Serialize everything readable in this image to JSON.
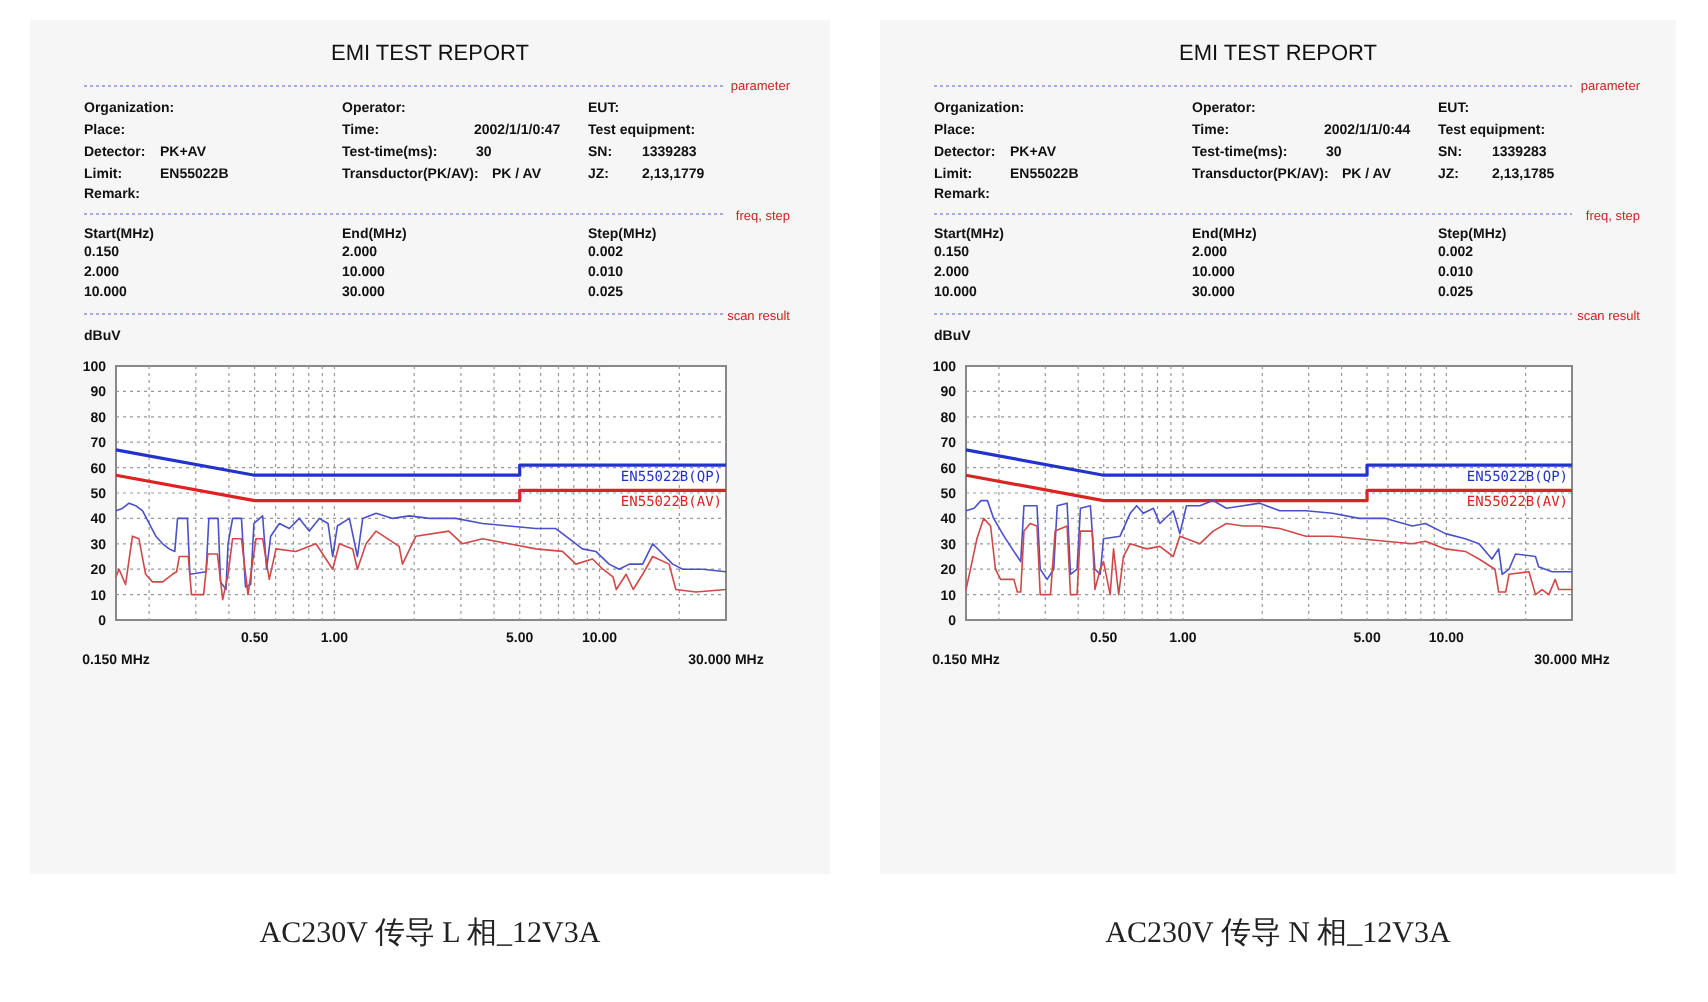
{
  "chart_data": [
    {
      "type": "line",
      "title": "EMI TEST REPORT",
      "ylabel": "dBuV",
      "log": "x",
      "xlim": [
        0.15,
        30
      ],
      "ylim": [
        0,
        100
      ],
      "grid": true,
      "xticks": [
        {
          "value": 0.15,
          "label": null
        },
        {
          "value": 0.2,
          "label": null
        },
        {
          "value": 0.3,
          "label": null
        },
        {
          "value": 0.4,
          "label": null
        },
        {
          "value": 0.5,
          "label": "0.50"
        },
        {
          "value": 0.6,
          "label": null
        },
        {
          "value": 0.7,
          "label": null
        },
        {
          "value": 0.8,
          "label": null
        },
        {
          "value": 0.9,
          "label": null
        },
        {
          "value": 1,
          "label": "1.00"
        },
        {
          "value": 2,
          "label": null
        },
        {
          "value": 3,
          "label": null
        },
        {
          "value": 4,
          "label": null
        },
        {
          "value": 5,
          "label": "5.00"
        },
        {
          "value": 6,
          "label": null
        },
        {
          "value": 7,
          "label": null
        },
        {
          "value": 8,
          "label": null
        },
        {
          "value": 9,
          "label": null
        },
        {
          "value": 10,
          "label": "10.00"
        },
        {
          "value": 20,
          "label": null
        },
        {
          "value": 30,
          "label": null
        }
      ],
      "yticks": [
        0,
        10,
        20,
        30,
        40,
        50,
        60,
        70,
        80,
        90,
        100
      ],
      "series": [
        {
          "name": "EN55022B(QP)",
          "color": "#2233cc",
          "x": [
            0.15,
            0.5,
            5,
            5,
            30
          ],
          "values": [
            67,
            57,
            57,
            61,
            61
          ]
        },
        {
          "name": "EN55022B(AV)",
          "color": "#dd2222",
          "x": [
            0.15,
            0.5,
            5,
            5,
            30
          ],
          "values": [
            57,
            47,
            47,
            51,
            51
          ]
        },
        {
          "color": "#4a50c8",
          "x": [
            0.15,
            0.159,
            0.168,
            0.178,
            0.189,
            0.2,
            0.212,
            0.225,
            0.238,
            0.25,
            0.256,
            0.279,
            0.285,
            0.328,
            0.336,
            0.364,
            0.372,
            0.39,
            0.397,
            0.413,
            0.446,
            0.462,
            0.483,
            0.497,
            0.536,
            0.555,
            0.575,
            0.62,
            0.676,
            0.737,
            0.804,
            0.877,
            0.946,
            0.985,
            1.026,
            1.139,
            1.221,
            1.279,
            1.436,
            1.659,
            1.917,
            2.28,
            2.87,
            3.62,
            4.56,
            5.75,
            6.84,
            7.46,
            8.62,
            9.68,
            10.87,
            11.86,
            12.95,
            14.54,
            15.87,
            17.31,
            18.88,
            20.6,
            24.5,
            30
          ],
          "values": [
            43,
            44,
            46,
            45,
            43,
            38,
            33,
            30,
            28,
            27,
            40,
            40,
            18,
            19,
            40,
            40,
            15,
            12,
            30,
            40,
            40,
            13,
            14,
            38,
            41,
            20,
            33,
            38,
            36,
            40,
            35,
            40,
            38,
            25,
            37,
            40,
            25,
            40,
            42,
            40,
            41,
            40,
            40,
            38,
            37,
            36,
            36,
            33,
            28,
            27,
            22,
            20,
            22,
            22,
            30,
            26,
            22,
            20,
            20,
            19
          ]
        },
        {
          "color": "#d04848",
          "x": [
            0.15,
            0.154,
            0.163,
            0.173,
            0.183,
            0.194,
            0.206,
            0.225,
            0.245,
            0.254,
            0.26,
            0.281,
            0.289,
            0.321,
            0.333,
            0.362,
            0.379,
            0.397,
            0.413,
            0.446,
            0.472,
            0.506,
            0.536,
            0.568,
            0.602,
            0.715,
            0.852,
            0.985,
            1.044,
            1.172,
            1.221,
            1.316,
            1.436,
            1.755,
            1.806,
            2.03,
            2.7,
            3.04,
            3.62,
            4.56,
            5.75,
            7.25,
            8.15,
            9.41,
            10.3,
            11.24,
            11.57,
            12.6,
            13.4,
            14.54,
            15.87,
            18.3,
            19.4,
            23.1,
            30
          ],
          "values": [
            17,
            20,
            14,
            33,
            32,
            18,
            15,
            15,
            18,
            19,
            25,
            25,
            10,
            10,
            26,
            26,
            8,
            18,
            32,
            32,
            10,
            32,
            32,
            16,
            28,
            27,
            30,
            20,
            30,
            28,
            20,
            30,
            35,
            29,
            22,
            33,
            35,
            30,
            32,
            30,
            28,
            27,
            22,
            24,
            20,
            17,
            12,
            18,
            12,
            18,
            25,
            22,
            12,
            11,
            12
          ]
        }
      ],
      "annotations": [
        "parameter",
        "Organization:",
        "Operator:",
        "EUT:",
        "Place:",
        "Time:",
        "2002/1/1/0:47",
        "Test equipment:",
        "Detector:",
        "PK+AV",
        "Test-time(ms):",
        "30",
        "SN:",
        "1339283",
        "Limit:",
        "EN55022B",
        "Transductor(PK/AV):",
        "PK  /  AV",
        "JZ:",
        "2,13,1779",
        "Remark:",
        "freq, step",
        "Start(MHz)",
        "End(MHz)",
        "Step(MHz)",
        "0.150",
        "2.000",
        "0.002",
        "2.000",
        "10.000",
        "0.010",
        "10.000",
        "30.000",
        "0.025",
        "scan result",
        "AC230V 传导 L 相_12V3A",
        "0.150 MHz",
        "30.000 MHz"
      ]
    },
    {
      "type": "line",
      "title": "EMI TEST REPORT",
      "ylabel": "dBuV",
      "log": "x",
      "xlim": [
        0.15,
        30
      ],
      "ylim": [
        0,
        100
      ],
      "grid": true,
      "xticks": [
        {
          "value": 0.15,
          "label": null
        },
        {
          "value": 0.2,
          "label": null
        },
        {
          "value": 0.3,
          "label": null
        },
        {
          "value": 0.4,
          "label": null
        },
        {
          "value": 0.5,
          "label": "0.50"
        },
        {
          "value": 0.6,
          "label": null
        },
        {
          "value": 0.7,
          "label": null
        },
        {
          "value": 0.8,
          "label": null
        },
        {
          "value": 0.9,
          "label": null
        },
        {
          "value": 1,
          "label": "1.00"
        },
        {
          "value": 2,
          "label": null
        },
        {
          "value": 3,
          "label": null
        },
        {
          "value": 4,
          "label": null
        },
        {
          "value": 5,
          "label": "5.00"
        },
        {
          "value": 6,
          "label": null
        },
        {
          "value": 7,
          "label": null
        },
        {
          "value": 8,
          "label": null
        },
        {
          "value": 9,
          "label": null
        },
        {
          "value": 10,
          "label": "10.00"
        },
        {
          "value": 20,
          "label": null
        },
        {
          "value": 30,
          "label": null
        }
      ],
      "yticks": [
        0,
        10,
        20,
        30,
        40,
        50,
        60,
        70,
        80,
        90,
        100
      ],
      "series": [
        {
          "name": "EN55022B(QP)",
          "color": "#2233cc",
          "x": [
            0.15,
            0.5,
            5,
            5,
            30
          ],
          "values": [
            67,
            57,
            57,
            61,
            61
          ]
        },
        {
          "name": "EN55022B(AV)",
          "color": "#dd2222",
          "x": [
            0.15,
            0.5,
            5,
            5,
            30
          ],
          "values": [
            57,
            47,
            47,
            51,
            51
          ]
        },
        {
          "color": "#4a50c8",
          "x": [
            0.15,
            0.161,
            0.171,
            0.181,
            0.191,
            0.209,
            0.228,
            0.242,
            0.249,
            0.279,
            0.287,
            0.305,
            0.323,
            0.333,
            0.363,
            0.374,
            0.396,
            0.408,
            0.445,
            0.463,
            0.485,
            0.499,
            0.577,
            0.63,
            0.667,
            0.707,
            0.772,
            0.817,
            0.918,
            0.973,
            1.031,
            1.158,
            1.302,
            1.462,
            1.69,
            1.955,
            2.33,
            2.93,
            3.7,
            4.66,
            5.89,
            7.42,
            8.33,
            9.92,
            11.8,
            13.3,
            14.9,
            15.8,
            16.3,
            17.3,
            18.3,
            21.8,
            22.4,
            25.2,
            30
          ],
          "values": [
            43,
            44,
            47,
            47,
            40,
            33,
            27,
            23,
            45,
            45,
            20,
            16,
            20,
            45,
            46,
            18,
            20,
            44,
            45,
            20,
            18,
            32,
            33,
            42,
            45,
            42,
            44,
            38,
            43,
            34,
            45,
            45,
            47,
            44,
            45,
            46,
            43,
            43,
            42,
            40,
            40,
            37,
            38,
            34,
            32,
            30,
            24,
            28,
            18,
            20,
            26,
            25,
            21,
            19,
            19
          ]
        },
        {
          "color": "#d04848",
          "x": [
            0.15,
            0.156,
            0.165,
            0.175,
            0.186,
            0.194,
            0.203,
            0.228,
            0.235,
            0.242,
            0.249,
            0.263,
            0.279,
            0.287,
            0.314,
            0.327,
            0.363,
            0.374,
            0.396,
            0.408,
            0.452,
            0.463,
            0.485,
            0.499,
            0.529,
            0.545,
            0.57,
            0.594,
            0.63,
            0.729,
            0.817,
            0.918,
            0.973,
            1.158,
            1.302,
            1.462,
            1.69,
            1.955,
            2.33,
            2.93,
            3.7,
            4.66,
            5.89,
            7.42,
            8.33,
            9.92,
            11.8,
            13.3,
            15.3,
            15.8,
            16.8,
            17.3,
            20.6,
            21.8,
            23.1,
            24.5,
            25.9,
            26.7,
            30
          ],
          "values": [
            12,
            20,
            32,
            40,
            37,
            20,
            16,
            16,
            11,
            11,
            35,
            38,
            37,
            10,
            10,
            35,
            37,
            10,
            10,
            35,
            35,
            12,
            20,
            23,
            10,
            28,
            10,
            25,
            30,
            28,
            29,
            25,
            33,
            30,
            35,
            38,
            37,
            37,
            36,
            33,
            33,
            32,
            31,
            30,
            31,
            28,
            27,
            24,
            20,
            11,
            11,
            18,
            19,
            10,
            12,
            10,
            16,
            12,
            12
          ]
        }
      ],
      "annotations": [
        "parameter",
        "Organization:",
        "Operator:",
        "EUT:",
        "Place:",
        "Time:",
        "2002/1/1/0:44",
        "Test equipment:",
        "Detector:",
        "PK+AV",
        "Test-time(ms):",
        "30",
        "SN:",
        "1339283",
        "Limit:",
        "EN55022B",
        "Transductor(PK/AV):",
        "PK  /  AV",
        "JZ:",
        "2,13,1785",
        "Remark:",
        "freq, step",
        "Start(MHz)",
        "End(MHz)",
        "Step(MHz)",
        "0.150",
        "2.000",
        "0.002",
        "2.000",
        "10.000",
        "0.010",
        "10.000",
        "30.000",
        "0.025",
        "scan result",
        "AC230V 传导 N 相_12V3A",
        "0.150 MHz",
        "30.000 MHz"
      ]
    }
  ]
}
